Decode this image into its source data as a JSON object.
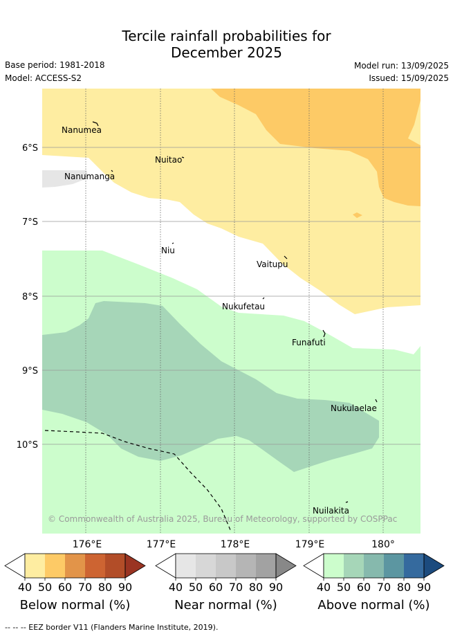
{
  "title": {
    "line1": "Tercile rainfall probabilities for",
    "line2": "December 2025"
  },
  "meta": {
    "base_period": "Base period: 1981-2018",
    "model": "Model: ACCESS-S2",
    "model_run": "Model run: 13/09/2025",
    "issued": "Issued: 15/09/2025"
  },
  "map": {
    "lat_labels": [
      "6°S",
      "7°S",
      "8°S",
      "9°S",
      "10°S"
    ],
    "lon_labels": [
      "176°E",
      "177°E",
      "178°E",
      "179°E",
      "180°"
    ],
    "islands": [
      {
        "name": "Nanumea"
      },
      {
        "name": "Nuitao"
      },
      {
        "name": "Nanumanga"
      },
      {
        "name": "Niu"
      },
      {
        "name": "Vaitupu"
      },
      {
        "name": "Nukufetau"
      },
      {
        "name": "Funafuti"
      },
      {
        "name": "Nukulaelae"
      },
      {
        "name": "Nuilakita"
      }
    ],
    "copyright": "© Commonwealth of Australia 2025, Bureau of Meteorology, supported by COSPPac"
  },
  "colorbars": [
    {
      "title": "Below normal (%)",
      "ticks": [
        "40",
        "50",
        "60",
        "70",
        "80",
        "90"
      ],
      "colors": [
        "#ffffff",
        "#feeda1",
        "#fdca66",
        "#e29449",
        "#cd6432",
        "#b24d28",
        "#9a3422"
      ]
    },
    {
      "title": "Near normal (%)",
      "ticks": [
        "40",
        "50",
        "60",
        "70",
        "80",
        "90"
      ],
      "colors": [
        "#ffffff",
        "#e6e6e6",
        "#d7d7d7",
        "#c8c8c8",
        "#b5b5b5",
        "#a2a2a2",
        "#888888"
      ]
    },
    {
      "title": "Above normal (%)",
      "ticks": [
        "40",
        "50",
        "60",
        "70",
        "80",
        "90"
      ],
      "colors": [
        "#ffffff",
        "#ccfdcc",
        "#a6d6b8",
        "#86b9ad",
        "#5c96a1",
        "#356a9e",
        "#1c4b7e"
      ]
    }
  ],
  "legend_note": "-- -- -- EEZ border V11 (Flanders Marine Institute, 2019).",
  "colors": {
    "below_40_50": "#feeda1",
    "below_50_60": "#fdca66",
    "near_40_50": "#e6e6e6",
    "above_40_50": "#ccfdcc",
    "above_50_60": "#a6d6b8"
  }
}
